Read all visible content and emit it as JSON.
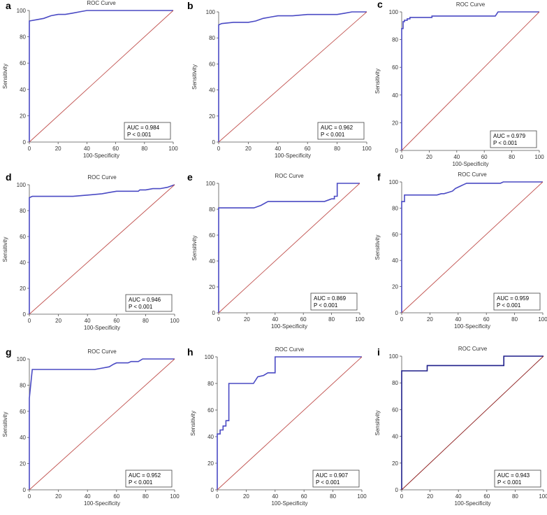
{
  "chart_data": [
    {
      "type": "line",
      "panel": "a",
      "title": "ROC Curve",
      "xlabel": "100-Specificity",
      "ylabel": "Sensitivity",
      "xlim": [
        0,
        100
      ],
      "ylim": [
        0,
        100
      ],
      "xticks": [
        "0",
        "20",
        "40",
        "60",
        "80",
        "100"
      ],
      "yticks": [
        "0",
        "20",
        "40",
        "60",
        "80",
        "100"
      ],
      "auc_text": "AUC = 0.984",
      "p_text": "P < 0.001",
      "series": [
        {
          "role": "roc",
          "color": "#4a4ac4",
          "x": [
            0,
            0,
            0,
            0,
            5,
            10,
            15,
            20,
            25,
            30,
            35,
            40,
            50,
            60,
            70,
            80,
            90,
            100
          ],
          "y": [
            0,
            60,
            85,
            92,
            93,
            94,
            96,
            97,
            97,
            98,
            99,
            100,
            100,
            100,
            100,
            100,
            100,
            100
          ]
        },
        {
          "role": "reference",
          "color": "#c0504d",
          "x": [
            0,
            100
          ],
          "y": [
            0,
            100
          ]
        }
      ]
    },
    {
      "type": "line",
      "panel": "b",
      "title": "",
      "xlabel": "100-Specificity",
      "ylabel": "Sensitivity",
      "xlim": [
        0,
        100
      ],
      "ylim": [
        0,
        100
      ],
      "xticks": [
        "0",
        "20",
        "40",
        "60",
        "80",
        "100"
      ],
      "yticks": [
        "0",
        "20",
        "40",
        "60",
        "80",
        "100"
      ],
      "auc_text": "AUC = 0.962",
      "p_text": "P < 0.001",
      "series": [
        {
          "role": "roc",
          "color": "#4a4ac4",
          "x": [
            0,
            0,
            0,
            0,
            2,
            10,
            20,
            25,
            30,
            35,
            40,
            50,
            60,
            70,
            80,
            85,
            90,
            100
          ],
          "y": [
            0,
            50,
            85,
            90,
            91,
            92,
            92,
            93,
            95,
            96,
            97,
            97,
            98,
            98,
            98,
            99,
            100,
            100
          ]
        },
        {
          "role": "reference",
          "color": "#c0504d",
          "x": [
            0,
            100
          ],
          "y": [
            0,
            100
          ]
        }
      ]
    },
    {
      "type": "line",
      "panel": "c",
      "title": "ROC Curve",
      "xlabel": "100-Specificity",
      "ylabel": "Sensitivity",
      "xlim": [
        0,
        100
      ],
      "ylim": [
        0,
        100
      ],
      "xticks": [
        "0",
        "20",
        "40",
        "60",
        "80",
        "100"
      ],
      "yticks": [
        "0",
        "20",
        "40",
        "60",
        "80",
        "100"
      ],
      "auc_text": "AUC = 0.979",
      "p_text": "P < 0.001",
      "series": [
        {
          "role": "roc",
          "color": "#4a4ac4",
          "x": [
            0,
            0,
            1,
            1,
            2,
            2,
            4,
            4,
            6,
            6,
            22,
            22,
            68,
            70,
            100
          ],
          "y": [
            0,
            88,
            88,
            93,
            93,
            94,
            94,
            95,
            95,
            96,
            96,
            97,
            97,
            100,
            100
          ]
        },
        {
          "role": "reference",
          "color": "#c0504d",
          "x": [
            0,
            100
          ],
          "y": [
            0,
            100
          ]
        }
      ]
    },
    {
      "type": "line",
      "panel": "d",
      "title": "ROC Curve",
      "xlabel": "100-Specificity",
      "ylabel": "Sensitivity",
      "xlim": [
        0,
        100
      ],
      "ylim": [
        0,
        100
      ],
      "xticks": [
        "0",
        "20",
        "40",
        "60",
        "80",
        "100"
      ],
      "yticks": [
        "0",
        "20",
        "40",
        "60",
        "80",
        "100"
      ],
      "auc_text": "AUC = 0.946",
      "p_text": "P < 0.001",
      "series": [
        {
          "role": "roc",
          "color": "#4a4ac4",
          "x": [
            0,
            0,
            0,
            2,
            10,
            20,
            30,
            40,
            50,
            55,
            60,
            65,
            75,
            76,
            80,
            85,
            90,
            95,
            100
          ],
          "y": [
            0,
            60,
            90,
            91,
            91,
            91,
            91,
            92,
            93,
            94,
            95,
            95,
            95,
            96,
            96,
            97,
            97,
            98,
            100
          ]
        },
        {
          "role": "reference",
          "color": "#c0504d",
          "x": [
            0,
            100
          ],
          "y": [
            0,
            100
          ]
        }
      ]
    },
    {
      "type": "line",
      "panel": "e",
      "title": "ROC Curve",
      "xlabel": "100-Specificity",
      "ylabel": "Sensitivity",
      "xlim": [
        0,
        100
      ],
      "ylim": [
        0,
        100
      ],
      "xticks": [
        "0",
        "20",
        "40",
        "60",
        "80",
        "100"
      ],
      "yticks": [
        "0",
        "20",
        "40",
        "60",
        "80",
        "100"
      ],
      "auc_text": "AUC = 0.869",
      "p_text": "P < 0.001",
      "series": [
        {
          "role": "roc",
          "color": "#4a4ac4",
          "x": [
            0,
            0,
            25,
            30,
            35,
            75,
            80,
            80,
            82,
            82,
            84,
            84,
            100
          ],
          "y": [
            0,
            81,
            81,
            83,
            86,
            86,
            88,
            88,
            88,
            90,
            90,
            100,
            100
          ]
        },
        {
          "role": "reference",
          "color": "#c0504d",
          "x": [
            0,
            100
          ],
          "y": [
            0,
            100
          ]
        }
      ]
    },
    {
      "type": "line",
      "panel": "f",
      "title": "ROC Curve",
      "xlabel": "100-Specificity",
      "ylabel": "Sensitivity",
      "xlim": [
        0,
        100
      ],
      "ylim": [
        0,
        100
      ],
      "xticks": [
        "0",
        "20",
        "40",
        "60",
        "80",
        "100"
      ],
      "yticks": [
        "0",
        "20",
        "40",
        "60",
        "80",
        "100"
      ],
      "auc_text": "AUC = 0.959",
      "p_text": "P < 0.001",
      "series": [
        {
          "role": "roc",
          "color": "#4a4ac4",
          "x": [
            0,
            0,
            2,
            2,
            25,
            28,
            30,
            33,
            36,
            38,
            40,
            42,
            44,
            46,
            70,
            72,
            100
          ],
          "y": [
            0,
            85,
            85,
            90,
            90,
            91,
            91,
            92,
            93,
            95,
            96,
            97,
            98,
            99,
            99,
            100,
            100
          ]
        },
        {
          "role": "reference",
          "color": "#c0504d",
          "x": [
            0,
            100
          ],
          "y": [
            0,
            100
          ]
        }
      ]
    },
    {
      "type": "line",
      "panel": "g",
      "title": "ROC Curve",
      "xlabel": "100-Specificity",
      "ylabel": "Sensitivity",
      "xlim": [
        0,
        100
      ],
      "ylim": [
        0,
        100
      ],
      "xticks": [
        "0",
        "20",
        "40",
        "60",
        "80",
        "100"
      ],
      "yticks": [
        "0",
        "20",
        "40",
        "60",
        "80",
        "100"
      ],
      "auc_text": "AUC = 0.952",
      "p_text": "P < 0.001",
      "series": [
        {
          "role": "roc",
          "color": "#4a4ac4",
          "x": [
            0,
            0,
            2,
            10,
            20,
            30,
            40,
            45,
            50,
            55,
            58,
            60,
            65,
            68,
            70,
            72,
            75,
            78,
            80,
            100
          ],
          "y": [
            0,
            70,
            92,
            92,
            92,
            92,
            92,
            92,
            93,
            94,
            96,
            97,
            97,
            97,
            98,
            98,
            98,
            100,
            100,
            100
          ]
        },
        {
          "role": "reference",
          "color": "#c0504d",
          "x": [
            0,
            100
          ],
          "y": [
            0,
            100
          ]
        }
      ]
    },
    {
      "type": "line",
      "panel": "h",
      "title": "ROC Curve",
      "xlabel": "100-Specificity",
      "ylabel": "Sensitivity",
      "xlim": [
        0,
        100
      ],
      "ylim": [
        0,
        100
      ],
      "xticks": [
        "0",
        "20",
        "40",
        "60",
        "80",
        "100"
      ],
      "yticks": [
        "0",
        "20",
        "40",
        "60",
        "80",
        "100"
      ],
      "auc_text": "AUC = 0.907",
      "p_text": "P < 0.001",
      "series": [
        {
          "role": "roc",
          "color": "#4a4ac4",
          "x": [
            0,
            0,
            2,
            2,
            4,
            4,
            6,
            6,
            8,
            8,
            25,
            28,
            32,
            35,
            38,
            40,
            40,
            100
          ],
          "y": [
            0,
            42,
            42,
            45,
            45,
            48,
            48,
            52,
            52,
            80,
            80,
            85,
            86,
            88,
            88,
            88,
            100,
            100
          ]
        },
        {
          "role": "reference",
          "color": "#c0504d",
          "x": [
            0,
            100
          ],
          "y": [
            0,
            100
          ]
        }
      ]
    },
    {
      "type": "line",
      "panel": "i",
      "title": "ROC Curve",
      "xlabel": "100-Specificity",
      "ylabel": "Sensitivity",
      "xlim": [
        0,
        100
      ],
      "ylim": [
        0,
        100
      ],
      "xticks": [
        "0",
        "20",
        "40",
        "60",
        "80",
        "100"
      ],
      "yticks": [
        "0",
        "20",
        "40",
        "60",
        "80",
        "100"
      ],
      "auc_text": "AUC = 0.943",
      "p_text": "P < 0.001",
      "series": [
        {
          "role": "roc",
          "color": "#1f1f8a",
          "x": [
            0,
            0,
            18,
            18,
            72,
            72,
            100
          ],
          "y": [
            0,
            89,
            89,
            93,
            93,
            100,
            100
          ]
        },
        {
          "role": "reference",
          "color": "#8b1a1a",
          "x": [
            0,
            100
          ],
          "y": [
            0,
            100
          ]
        }
      ]
    }
  ]
}
